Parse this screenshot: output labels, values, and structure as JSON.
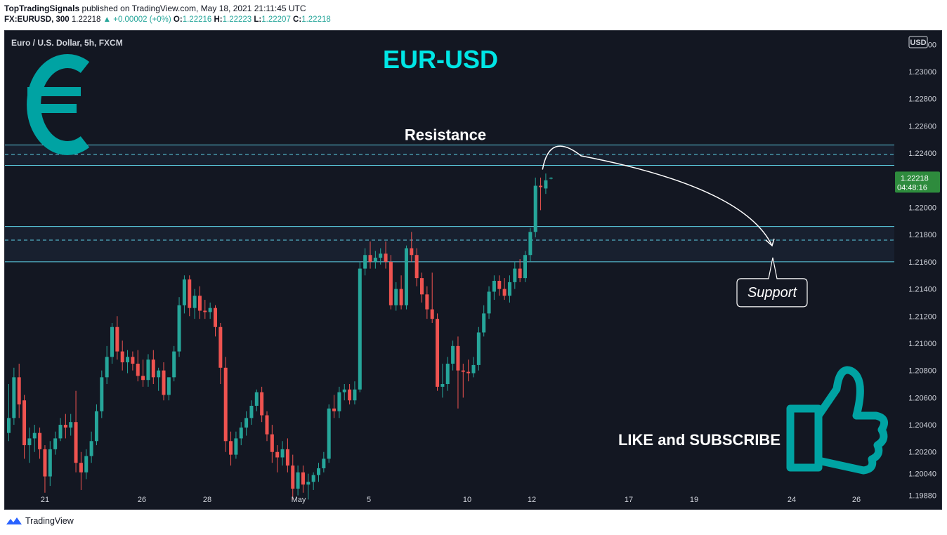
{
  "header": {
    "publisher": "TopTradingSignals",
    "published_on": "published on TradingView.com, May 18, 2021 21:11:45 UTC",
    "symbol": "FX:EURUSD, 300",
    "last": "1.22218",
    "change": "▲ +0.00002 (+0%)",
    "o_label": "O:",
    "o": "1.22216",
    "h_label": "H:",
    "h": "1.22223",
    "l_label": "L:",
    "l": "1.22207",
    "c_label": "C:",
    "c": "1.22218"
  },
  "footer": {
    "brand": "TradingView"
  },
  "colors": {
    "background": "#131722",
    "up_candle": "#26a69a",
    "down_candle": "#ef5350",
    "zone_line": "#5ed1e6",
    "title_cyan": "#00e5e5",
    "icon_teal": "#00a3a3",
    "price_badge": "#2e8b3d"
  },
  "chart_data": {
    "type": "candlestick",
    "title": "EUR-USD",
    "instrument_label": "Euro / U.S. Dollar, 5h, FXCM",
    "currency": "USD",
    "ylim": [
      1.1978,
      1.233
    ],
    "y_ticks": [
      "1.23200",
      "1.23000",
      "1.22800",
      "1.22600",
      "1.22400",
      "1.22200",
      "1.22000",
      "1.21800",
      "1.21600",
      "1.21400",
      "1.21200",
      "1.21000",
      "1.20800",
      "1.20600",
      "1.20400",
      "1.20200",
      "1.20040",
      "1.19880"
    ],
    "x_ticks": [
      "21",
      "26",
      "28",
      "May",
      "5",
      "10",
      "12",
      "17",
      "19",
      "24",
      "26"
    ],
    "last_price": "1.22218",
    "countdown": "04:48:16",
    "resistance": {
      "label": "Resistance",
      "top": 1.2246,
      "mid": 1.2239,
      "bottom": 1.2231
    },
    "support": {
      "label": "Support",
      "top": 1.2186,
      "mid": 1.2176,
      "bottom": 1.216
    },
    "cta": "LIKE and SUBSCRIBE",
    "candles": [
      {
        "o": 1.2034,
        "h": 1.207,
        "l": 1.2028,
        "c": 1.2045
      },
      {
        "o": 1.2045,
        "h": 1.2082,
        "l": 1.204,
        "c": 1.2075
      },
      {
        "o": 1.2075,
        "h": 1.2085,
        "l": 1.2045,
        "c": 1.2055
      },
      {
        "o": 1.2058,
        "h": 1.2062,
        "l": 1.2015,
        "c": 1.2025
      },
      {
        "o": 1.2025,
        "h": 1.2038,
        "l": 1.2012,
        "c": 1.203
      },
      {
        "o": 1.203,
        "h": 1.204,
        "l": 1.202,
        "c": 1.2034
      },
      {
        "o": 1.2034,
        "h": 1.2038,
        "l": 1.2015,
        "c": 1.2022
      },
      {
        "o": 1.2022,
        "h": 1.2025,
        "l": 1.199,
        "c": 1.2002
      },
      {
        "o": 1.2002,
        "h": 1.2028,
        "l": 1.1995,
        "c": 1.2022
      },
      {
        "o": 1.2022,
        "h": 1.2035,
        "l": 1.2018,
        "c": 1.203
      },
      {
        "o": 1.203,
        "h": 1.2045,
        "l": 1.2028,
        "c": 1.204
      },
      {
        "o": 1.204,
        "h": 1.2048,
        "l": 1.203,
        "c": 1.2038
      },
      {
        "o": 1.2038,
        "h": 1.2048,
        "l": 1.2032,
        "c": 1.2042
      },
      {
        "o": 1.2042,
        "h": 1.2065,
        "l": 1.2005,
        "c": 1.2012
      },
      {
        "o": 1.2012,
        "h": 1.202,
        "l": 1.1992,
        "c": 1.2005
      },
      {
        "o": 1.2005,
        "h": 1.2022,
        "l": 1.2,
        "c": 1.2017
      },
      {
        "o": 1.2017,
        "h": 1.2035,
        "l": 1.2012,
        "c": 1.2028
      },
      {
        "o": 1.2028,
        "h": 1.2055,
        "l": 1.2025,
        "c": 1.205
      },
      {
        "o": 1.205,
        "h": 1.208,
        "l": 1.2045,
        "c": 1.2075
      },
      {
        "o": 1.2075,
        "h": 1.2098,
        "l": 1.207,
        "c": 1.209
      },
      {
        "o": 1.209,
        "h": 1.2115,
        "l": 1.2085,
        "c": 1.2112
      },
      {
        "o": 1.2112,
        "h": 1.212,
        "l": 1.2088,
        "c": 1.2094
      },
      {
        "o": 1.2094,
        "h": 1.2102,
        "l": 1.208,
        "c": 1.2086
      },
      {
        "o": 1.2086,
        "h": 1.2095,
        "l": 1.2078,
        "c": 1.209
      },
      {
        "o": 1.209,
        "h": 1.2094,
        "l": 1.208,
        "c": 1.2085
      },
      {
        "o": 1.2085,
        "h": 1.2095,
        "l": 1.2072,
        "c": 1.2076
      },
      {
        "o": 1.2076,
        "h": 1.2088,
        "l": 1.2068,
        "c": 1.2073
      },
      {
        "o": 1.2073,
        "h": 1.2092,
        "l": 1.2068,
        "c": 1.2088
      },
      {
        "o": 1.2088,
        "h": 1.2095,
        "l": 1.207,
        "c": 1.2075
      },
      {
        "o": 1.2075,
        "h": 1.2082,
        "l": 1.2065,
        "c": 1.208
      },
      {
        "o": 1.208,
        "h": 1.2086,
        "l": 1.2058,
        "c": 1.2062
      },
      {
        "o": 1.2062,
        "h": 1.2075,
        "l": 1.2058,
        "c": 1.2075
      },
      {
        "o": 1.2075,
        "h": 1.2098,
        "l": 1.2072,
        "c": 1.2094
      },
      {
        "o": 1.2094,
        "h": 1.2134,
        "l": 1.209,
        "c": 1.2128
      },
      {
        "o": 1.2128,
        "h": 1.215,
        "l": 1.2122,
        "c": 1.2147
      },
      {
        "o": 1.2147,
        "h": 1.215,
        "l": 1.212,
        "c": 1.2126
      },
      {
        "o": 1.2126,
        "h": 1.214,
        "l": 1.2118,
        "c": 1.2135
      },
      {
        "o": 1.2135,
        "h": 1.2142,
        "l": 1.2118,
        "c": 1.2124
      },
      {
        "o": 1.2124,
        "h": 1.2132,
        "l": 1.2118,
        "c": 1.2123
      },
      {
        "o": 1.2123,
        "h": 1.213,
        "l": 1.2118,
        "c": 1.2126
      },
      {
        "o": 1.2126,
        "h": 1.2128,
        "l": 1.2105,
        "c": 1.2112
      },
      {
        "o": 1.2112,
        "h": 1.2115,
        "l": 1.207,
        "c": 1.2082
      },
      {
        "o": 1.2082,
        "h": 1.209,
        "l": 1.202,
        "c": 1.2028
      },
      {
        "o": 1.2028,
        "h": 1.2035,
        "l": 1.201,
        "c": 1.2018
      },
      {
        "o": 1.2018,
        "h": 1.2035,
        "l": 1.2015,
        "c": 1.203
      },
      {
        "o": 1.203,
        "h": 1.2042,
        "l": 1.2025,
        "c": 1.2038
      },
      {
        "o": 1.2038,
        "h": 1.205,
        "l": 1.2032,
        "c": 1.2045
      },
      {
        "o": 1.2045,
        "h": 1.2058,
        "l": 1.204,
        "c": 1.2054
      },
      {
        "o": 1.2054,
        "h": 1.2066,
        "l": 1.205,
        "c": 1.2064
      },
      {
        "o": 1.2064,
        "h": 1.2068,
        "l": 1.2042,
        "c": 1.2047
      },
      {
        "o": 1.2047,
        "h": 1.205,
        "l": 1.2028,
        "c": 1.2033
      },
      {
        "o": 1.2033,
        "h": 1.204,
        "l": 1.2012,
        "c": 1.202
      },
      {
        "o": 1.202,
        "h": 1.2025,
        "l": 1.2005,
        "c": 1.2016
      },
      {
        "o": 1.2016,
        "h": 1.2028,
        "l": 1.201,
        "c": 1.2022
      },
      {
        "o": 1.2022,
        "h": 1.203,
        "l": 1.2005,
        "c": 1.201
      },
      {
        "o": 1.201,
        "h": 1.2018,
        "l": 1.1985,
        "c": 1.1993
      },
      {
        "o": 1.1993,
        "h": 1.201,
        "l": 1.1988,
        "c": 1.2005
      },
      {
        "o": 1.2005,
        "h": 1.201,
        "l": 1.199,
        "c": 1.1996
      },
      {
        "o": 1.1996,
        "h": 1.2004,
        "l": 1.1985,
        "c": 1.1998
      },
      {
        "o": 1.1998,
        "h": 1.2005,
        "l": 1.1992,
        "c": 1.2003
      },
      {
        "o": 1.2003,
        "h": 1.2012,
        "l": 1.1998,
        "c": 1.2008
      },
      {
        "o": 1.2008,
        "h": 1.202,
        "l": 1.2005,
        "c": 1.2015
      },
      {
        "o": 1.2015,
        "h": 1.2055,
        "l": 1.2012,
        "c": 1.2052
      },
      {
        "o": 1.2052,
        "h": 1.2062,
        "l": 1.2045,
        "c": 1.205
      },
      {
        "o": 1.205,
        "h": 1.2068,
        "l": 1.2045,
        "c": 1.2064
      },
      {
        "o": 1.2064,
        "h": 1.207,
        "l": 1.2058,
        "c": 1.2066
      },
      {
        "o": 1.2066,
        "h": 1.207,
        "l": 1.2055,
        "c": 1.2058
      },
      {
        "o": 1.2058,
        "h": 1.2072,
        "l": 1.2055,
        "c": 1.2066
      },
      {
        "o": 1.2066,
        "h": 1.216,
        "l": 1.2064,
        "c": 1.2155
      },
      {
        "o": 1.2155,
        "h": 1.217,
        "l": 1.215,
        "c": 1.2165
      },
      {
        "o": 1.2165,
        "h": 1.2175,
        "l": 1.2155,
        "c": 1.216
      },
      {
        "o": 1.216,
        "h": 1.2168,
        "l": 1.2155,
        "c": 1.2163
      },
      {
        "o": 1.2163,
        "h": 1.217,
        "l": 1.2158,
        "c": 1.2166
      },
      {
        "o": 1.2166,
        "h": 1.2175,
        "l": 1.2155,
        "c": 1.216
      },
      {
        "o": 1.216,
        "h": 1.2165,
        "l": 1.2125,
        "c": 1.2128
      },
      {
        "o": 1.2128,
        "h": 1.2145,
        "l": 1.2124,
        "c": 1.214
      },
      {
        "o": 1.214,
        "h": 1.215,
        "l": 1.2125,
        "c": 1.2128
      },
      {
        "o": 1.2128,
        "h": 1.2172,
        "l": 1.2125,
        "c": 1.217
      },
      {
        "o": 1.217,
        "h": 1.2182,
        "l": 1.216,
        "c": 1.2165
      },
      {
        "o": 1.2165,
        "h": 1.217,
        "l": 1.2142,
        "c": 1.2148
      },
      {
        "o": 1.2148,
        "h": 1.2152,
        "l": 1.213,
        "c": 1.2136
      },
      {
        "o": 1.2136,
        "h": 1.2142,
        "l": 1.2118,
        "c": 1.2125
      },
      {
        "o": 1.2125,
        "h": 1.2152,
        "l": 1.2115,
        "c": 1.2118
      },
      {
        "o": 1.2118,
        "h": 1.2122,
        "l": 1.2065,
        "c": 1.2068
      },
      {
        "o": 1.2068,
        "h": 1.2085,
        "l": 1.206,
        "c": 1.207
      },
      {
        "o": 1.207,
        "h": 1.209,
        "l": 1.2065,
        "c": 1.2085
      },
      {
        "o": 1.2085,
        "h": 1.2102,
        "l": 1.208,
        "c": 1.2098
      },
      {
        "o": 1.2098,
        "h": 1.2105,
        "l": 1.2052,
        "c": 1.208
      },
      {
        "o": 1.208,
        "h": 1.2085,
        "l": 1.206,
        "c": 1.2079
      },
      {
        "o": 1.2079,
        "h": 1.2088,
        "l": 1.2072,
        "c": 1.2078
      },
      {
        "o": 1.2078,
        "h": 1.209,
        "l": 1.2075,
        "c": 1.2084
      },
      {
        "o": 1.2084,
        "h": 1.2112,
        "l": 1.208,
        "c": 1.2108
      },
      {
        "o": 1.2108,
        "h": 1.2128,
        "l": 1.2105,
        "c": 1.2122
      },
      {
        "o": 1.2122,
        "h": 1.2142,
        "l": 1.2118,
        "c": 1.2138
      },
      {
        "o": 1.2138,
        "h": 1.215,
        "l": 1.2132,
        "c": 1.2146
      },
      {
        "o": 1.2146,
        "h": 1.215,
        "l": 1.2135,
        "c": 1.214
      },
      {
        "o": 1.214,
        "h": 1.2148,
        "l": 1.2132,
        "c": 1.2135
      },
      {
        "o": 1.2135,
        "h": 1.215,
        "l": 1.213,
        "c": 1.2145
      },
      {
        "o": 1.2145,
        "h": 1.216,
        "l": 1.214,
        "c": 1.2155
      },
      {
        "o": 1.2155,
        "h": 1.2162,
        "l": 1.2145,
        "c": 1.2148
      },
      {
        "o": 1.2148,
        "h": 1.2168,
        "l": 1.2145,
        "c": 1.2165
      },
      {
        "o": 1.2165,
        "h": 1.2185,
        "l": 1.216,
        "c": 1.2182
      },
      {
        "o": 1.2182,
        "h": 1.2222,
        "l": 1.2178,
        "c": 1.2216
      },
      {
        "o": 1.2216,
        "h": 1.2222,
        "l": 1.2198,
        "c": 1.2215
      },
      {
        "o": 1.2214,
        "h": 1.2225,
        "l": 1.221,
        "c": 1.222
      },
      {
        "o": 1.22216,
        "h": 1.22223,
        "l": 1.22207,
        "c": 1.22218
      }
    ]
  }
}
